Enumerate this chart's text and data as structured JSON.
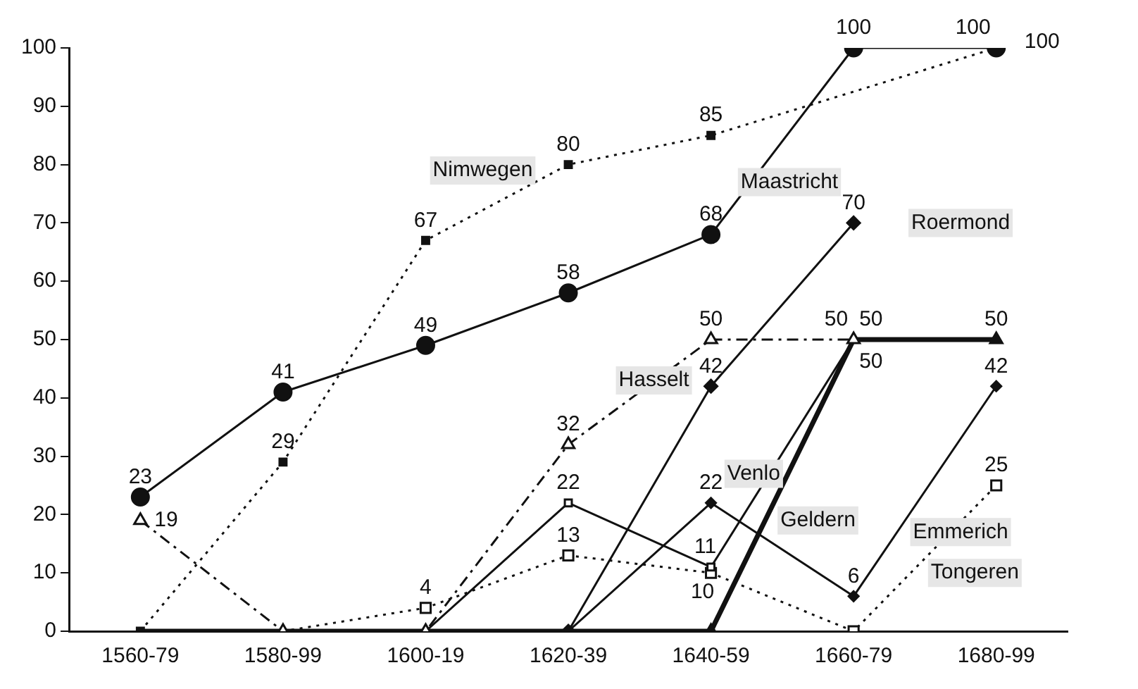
{
  "chart_data": {
    "type": "line",
    "categories": [
      "1560-79",
      "1580-99",
      "1600-19",
      "1620-39",
      "1640-59",
      "1660-79",
      "1680-99"
    ],
    "ylim": [
      0,
      100
    ],
    "yticks": [
      0,
      10,
      20,
      30,
      40,
      50,
      60,
      70,
      80,
      90,
      100
    ],
    "grid": false,
    "legend": false,
    "series": [
      {
        "name": "Maastricht",
        "color": "#111111",
        "marker": "circle",
        "line_style": "solid",
        "values": [
          23,
          41,
          49,
          58,
          68,
          100,
          100
        ],
        "value_labels": [
          "23",
          "41",
          "49",
          "58",
          "68",
          "100",
          "100"
        ]
      },
      {
        "name": "Nimwegen",
        "color": "#111111",
        "marker": "square",
        "line_style": "dotted",
        "values": [
          0,
          29,
          67,
          80,
          85,
          null,
          100
        ],
        "value_labels": [
          null,
          "29",
          "67",
          "80",
          "85",
          null,
          "100"
        ]
      },
      {
        "name": "Roermond",
        "color": "#111111",
        "marker": "diamond",
        "line_style": "solid",
        "values": [
          null,
          null,
          null,
          0,
          42,
          70,
          null
        ],
        "value_labels": [
          null,
          null,
          null,
          null,
          "42",
          "70",
          null
        ]
      },
      {
        "name": "Hasselt",
        "color": "#111111",
        "marker": "triangle",
        "line_style": "dashed",
        "values": [
          19,
          0,
          0,
          32,
          50,
          50,
          null
        ],
        "value_labels": [
          "19",
          null,
          null,
          "32",
          "50",
          "50",
          null
        ]
      },
      {
        "name": "Venlo",
        "color": "#111111",
        "marker": "square",
        "line_style": "solid",
        "values": [
          null,
          null,
          0,
          22,
          11,
          50,
          null
        ],
        "value_labels": [
          null,
          null,
          null,
          "22",
          "11",
          "50",
          null
        ]
      },
      {
        "name": "Geldern",
        "color": "#111111",
        "marker": "triangle",
        "line_style": "solid",
        "values": [
          0,
          0,
          0,
          0,
          0,
          50,
          50
        ],
        "value_labels": [
          null,
          null,
          null,
          null,
          null,
          "50",
          "50"
        ]
      },
      {
        "name": "Emmerich",
        "color": "#111111",
        "marker": "diamond",
        "line_style": "solid",
        "values": [
          null,
          null,
          null,
          0,
          22,
          6,
          42
        ],
        "value_labels": [
          null,
          null,
          null,
          null,
          "22",
          "6",
          "42"
        ]
      },
      {
        "name": "Tongeren",
        "color": "#111111",
        "marker": "square",
        "line_style": "dotted",
        "values": [
          null,
          0,
          4,
          13,
          10,
          0,
          25
        ],
        "value_labels": [
          null,
          null,
          "4",
          "13",
          "10",
          null,
          "25"
        ]
      }
    ]
  }
}
